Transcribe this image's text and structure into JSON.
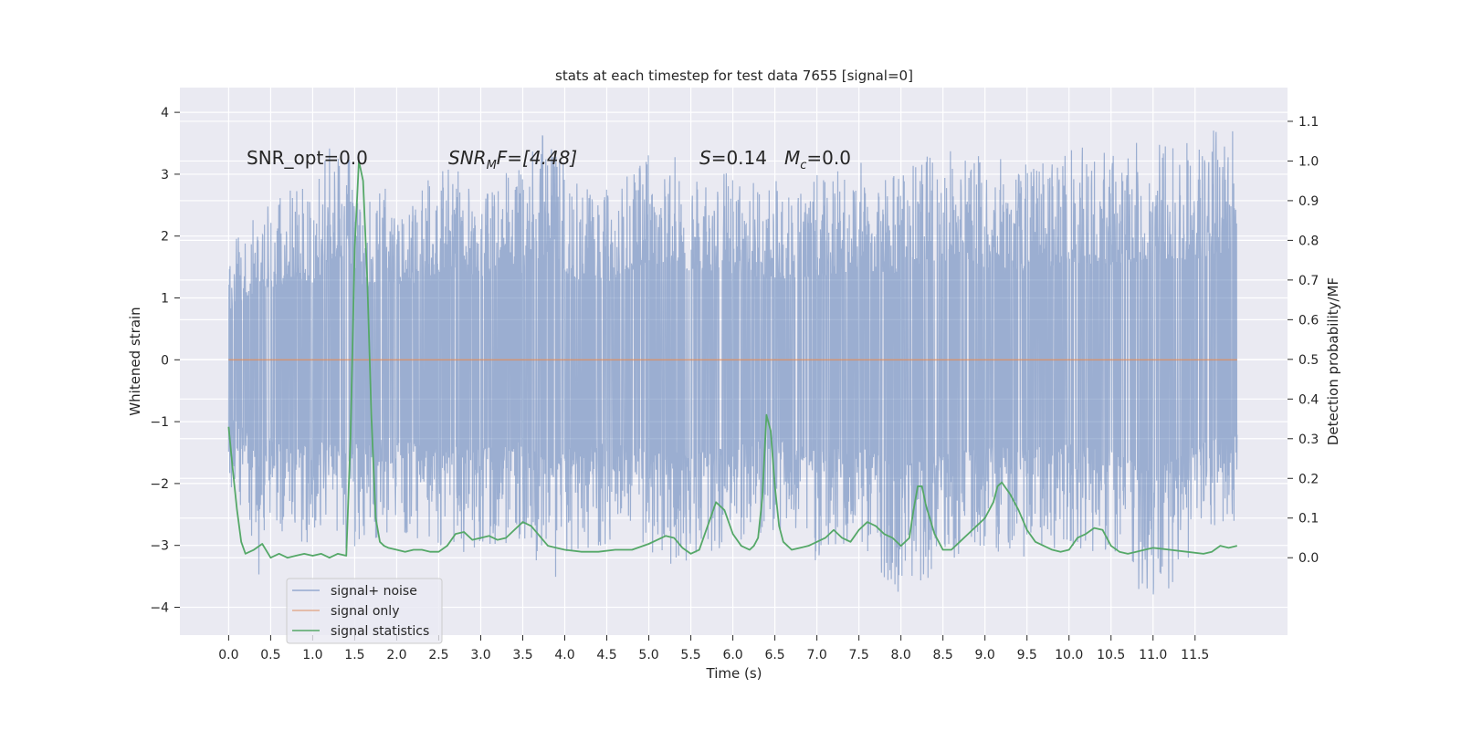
{
  "chart_data": {
    "type": "line",
    "title": "stats at each timestep for test data 7655 [signal=0]",
    "xlabel": "Time (s)",
    "ylabel": "Whitened strain",
    "ylabel_right": "Detection probability/MF",
    "xlim": [
      -0.58,
      12.6
    ],
    "ylim": [
      -4.45,
      4.4
    ],
    "ylim_right": [
      -0.195,
      1.185
    ],
    "x_ticks": [
      "0.0",
      "0.5",
      "1.0",
      "1.5",
      "2.0",
      "2.5",
      "3.0",
      "3.5",
      "4.0",
      "4.5",
      "5.0",
      "5.5",
      "6.0",
      "6.5",
      "7.0",
      "7.5",
      "8.0",
      "8.5",
      "9.0",
      "9.5",
      "10.0",
      "10.5",
      "11.0",
      "11.5"
    ],
    "y_ticks": [
      "4",
      "3",
      "2",
      "1",
      "0",
      "−1",
      "−2",
      "−3",
      "−4"
    ],
    "y_ticks_right": [
      "1.1",
      "1.0",
      "0.9",
      "0.8",
      "0.7",
      "0.6",
      "0.5",
      "0.4",
      "0.3",
      "0.2",
      "0.1",
      "0.0"
    ],
    "grid": true,
    "legend_position": "lower-left",
    "colors": {
      "background": "#eaeaf2",
      "grid": "#ffffff",
      "noise": "#4c72b0",
      "signal_only": "#dd8452",
      "statistics": "#55a868"
    },
    "annotations": {
      "snr_opt": "SNR_opt=0.0",
      "snr_mf_label": "SNR",
      "snr_mf_sub": "M",
      "snr_mf_rest": "F=[4.48]",
      "s_label": "S",
      "s_value": "=0.14",
      "mc_label": "M",
      "mc_sub": "c",
      "mc_value": "=0.0"
    },
    "series": [
      {
        "name": "signal+ noise",
        "t_range": [
          0.0,
          12.0
        ],
        "envelope": {
          "t": [
            0.0,
            0.2,
            0.3,
            0.35,
            0.5,
            0.8,
            1.0,
            1.3,
            1.6,
            1.9,
            2.2,
            2.6,
            3.0,
            3.5,
            3.8,
            4.1,
            4.5,
            5.0,
            5.5,
            6.0,
            6.5,
            7.0,
            7.5,
            8.0,
            8.5,
            9.0,
            9.5,
            10.0,
            10.5,
            11.0,
            11.5,
            12.0
          ],
          "upper": [
            1.8,
            2.2,
            2.4,
            2.8,
            2.5,
            2.9,
            2.7,
            3.8,
            2.6,
            2.8,
            2.7,
            3.3,
            3.0,
            3.1,
            3.9,
            2.9,
            2.8,
            3.5,
            3.2,
            3.1,
            2.9,
            3.0,
            3.2,
            3.1,
            3.5,
            3.3,
            3.2,
            3.5,
            3.4,
            3.6,
            3.6,
            4.0
          ],
          "lower": [
            -2.0,
            -2.5,
            -3.3,
            -3.6,
            -2.8,
            -3.2,
            -2.9,
            -3.1,
            -3.0,
            -2.8,
            -3.0,
            -3.1,
            -3.2,
            -2.9,
            -3.7,
            -3.1,
            -3.0,
            -3.2,
            -3.4,
            -3.1,
            -2.8,
            -3.3,
            -3.1,
            -3.8,
            -3.4,
            -3.1,
            -3.2,
            -3.0,
            -3.2,
            -4.05,
            -3.1,
            -2.6
          ]
        }
      },
      {
        "name": "signal only",
        "x": [
          0.0,
          12.0
        ],
        "values": [
          0.0,
          0.0
        ]
      },
      {
        "name": "signal statistics",
        "axis": "right",
        "x": [
          0.0,
          0.05,
          0.1,
          0.15,
          0.2,
          0.3,
          0.4,
          0.5,
          0.6,
          0.7,
          0.8,
          0.9,
          1.0,
          1.1,
          1.2,
          1.3,
          1.4,
          1.45,
          1.5,
          1.55,
          1.6,
          1.65,
          1.7,
          1.75,
          1.8,
          1.85,
          1.9,
          2.0,
          2.1,
          2.2,
          2.3,
          2.4,
          2.5,
          2.6,
          2.7,
          2.8,
          2.9,
          3.0,
          3.1,
          3.2,
          3.3,
          3.4,
          3.5,
          3.6,
          3.7,
          3.8,
          3.9,
          4.0,
          4.2,
          4.4,
          4.6,
          4.8,
          5.0,
          5.1,
          5.2,
          5.3,
          5.4,
          5.5,
          5.6,
          5.7,
          5.8,
          5.9,
          6.0,
          6.1,
          6.2,
          6.25,
          6.3,
          6.35,
          6.4,
          6.45,
          6.5,
          6.55,
          6.6,
          6.7,
          6.8,
          6.9,
          7.0,
          7.1,
          7.2,
          7.3,
          7.4,
          7.5,
          7.6,
          7.7,
          7.8,
          7.9,
          8.0,
          8.1,
          8.15,
          8.2,
          8.25,
          8.3,
          8.4,
          8.5,
          8.6,
          8.7,
          8.8,
          8.9,
          9.0,
          9.1,
          9.15,
          9.2,
          9.3,
          9.4,
          9.5,
          9.6,
          9.7,
          9.8,
          9.9,
          10.0,
          10.1,
          10.2,
          10.3,
          10.4,
          10.5,
          10.6,
          10.7,
          10.8,
          10.9,
          11.0,
          11.2,
          11.4,
          11.6,
          11.7,
          11.8,
          11.9,
          12.0
        ],
        "values": [
          0.33,
          0.22,
          0.12,
          0.04,
          0.01,
          0.02,
          0.035,
          0.0,
          0.01,
          0.0,
          0.005,
          0.01,
          0.005,
          0.01,
          0.0,
          0.01,
          0.005,
          0.3,
          0.78,
          1.0,
          0.95,
          0.7,
          0.35,
          0.1,
          0.04,
          0.03,
          0.025,
          0.02,
          0.015,
          0.02,
          0.02,
          0.015,
          0.015,
          0.03,
          0.06,
          0.065,
          0.045,
          0.05,
          0.055,
          0.045,
          0.05,
          0.07,
          0.09,
          0.08,
          0.055,
          0.03,
          0.025,
          0.02,
          0.015,
          0.015,
          0.02,
          0.02,
          0.035,
          0.045,
          0.055,
          0.05,
          0.025,
          0.01,
          0.02,
          0.08,
          0.14,
          0.12,
          0.06,
          0.03,
          0.02,
          0.03,
          0.05,
          0.15,
          0.36,
          0.32,
          0.18,
          0.08,
          0.04,
          0.02,
          0.025,
          0.03,
          0.04,
          0.05,
          0.07,
          0.05,
          0.04,
          0.07,
          0.09,
          0.08,
          0.06,
          0.05,
          0.03,
          0.05,
          0.12,
          0.18,
          0.18,
          0.13,
          0.06,
          0.02,
          0.02,
          0.04,
          0.06,
          0.08,
          0.1,
          0.14,
          0.18,
          0.19,
          0.16,
          0.12,
          0.07,
          0.04,
          0.03,
          0.02,
          0.015,
          0.02,
          0.05,
          0.06,
          0.075,
          0.07,
          0.03,
          0.015,
          0.01,
          0.015,
          0.02,
          0.025,
          0.02,
          0.015,
          0.01,
          0.015,
          0.03,
          0.025,
          0.03
        ]
      }
    ]
  }
}
